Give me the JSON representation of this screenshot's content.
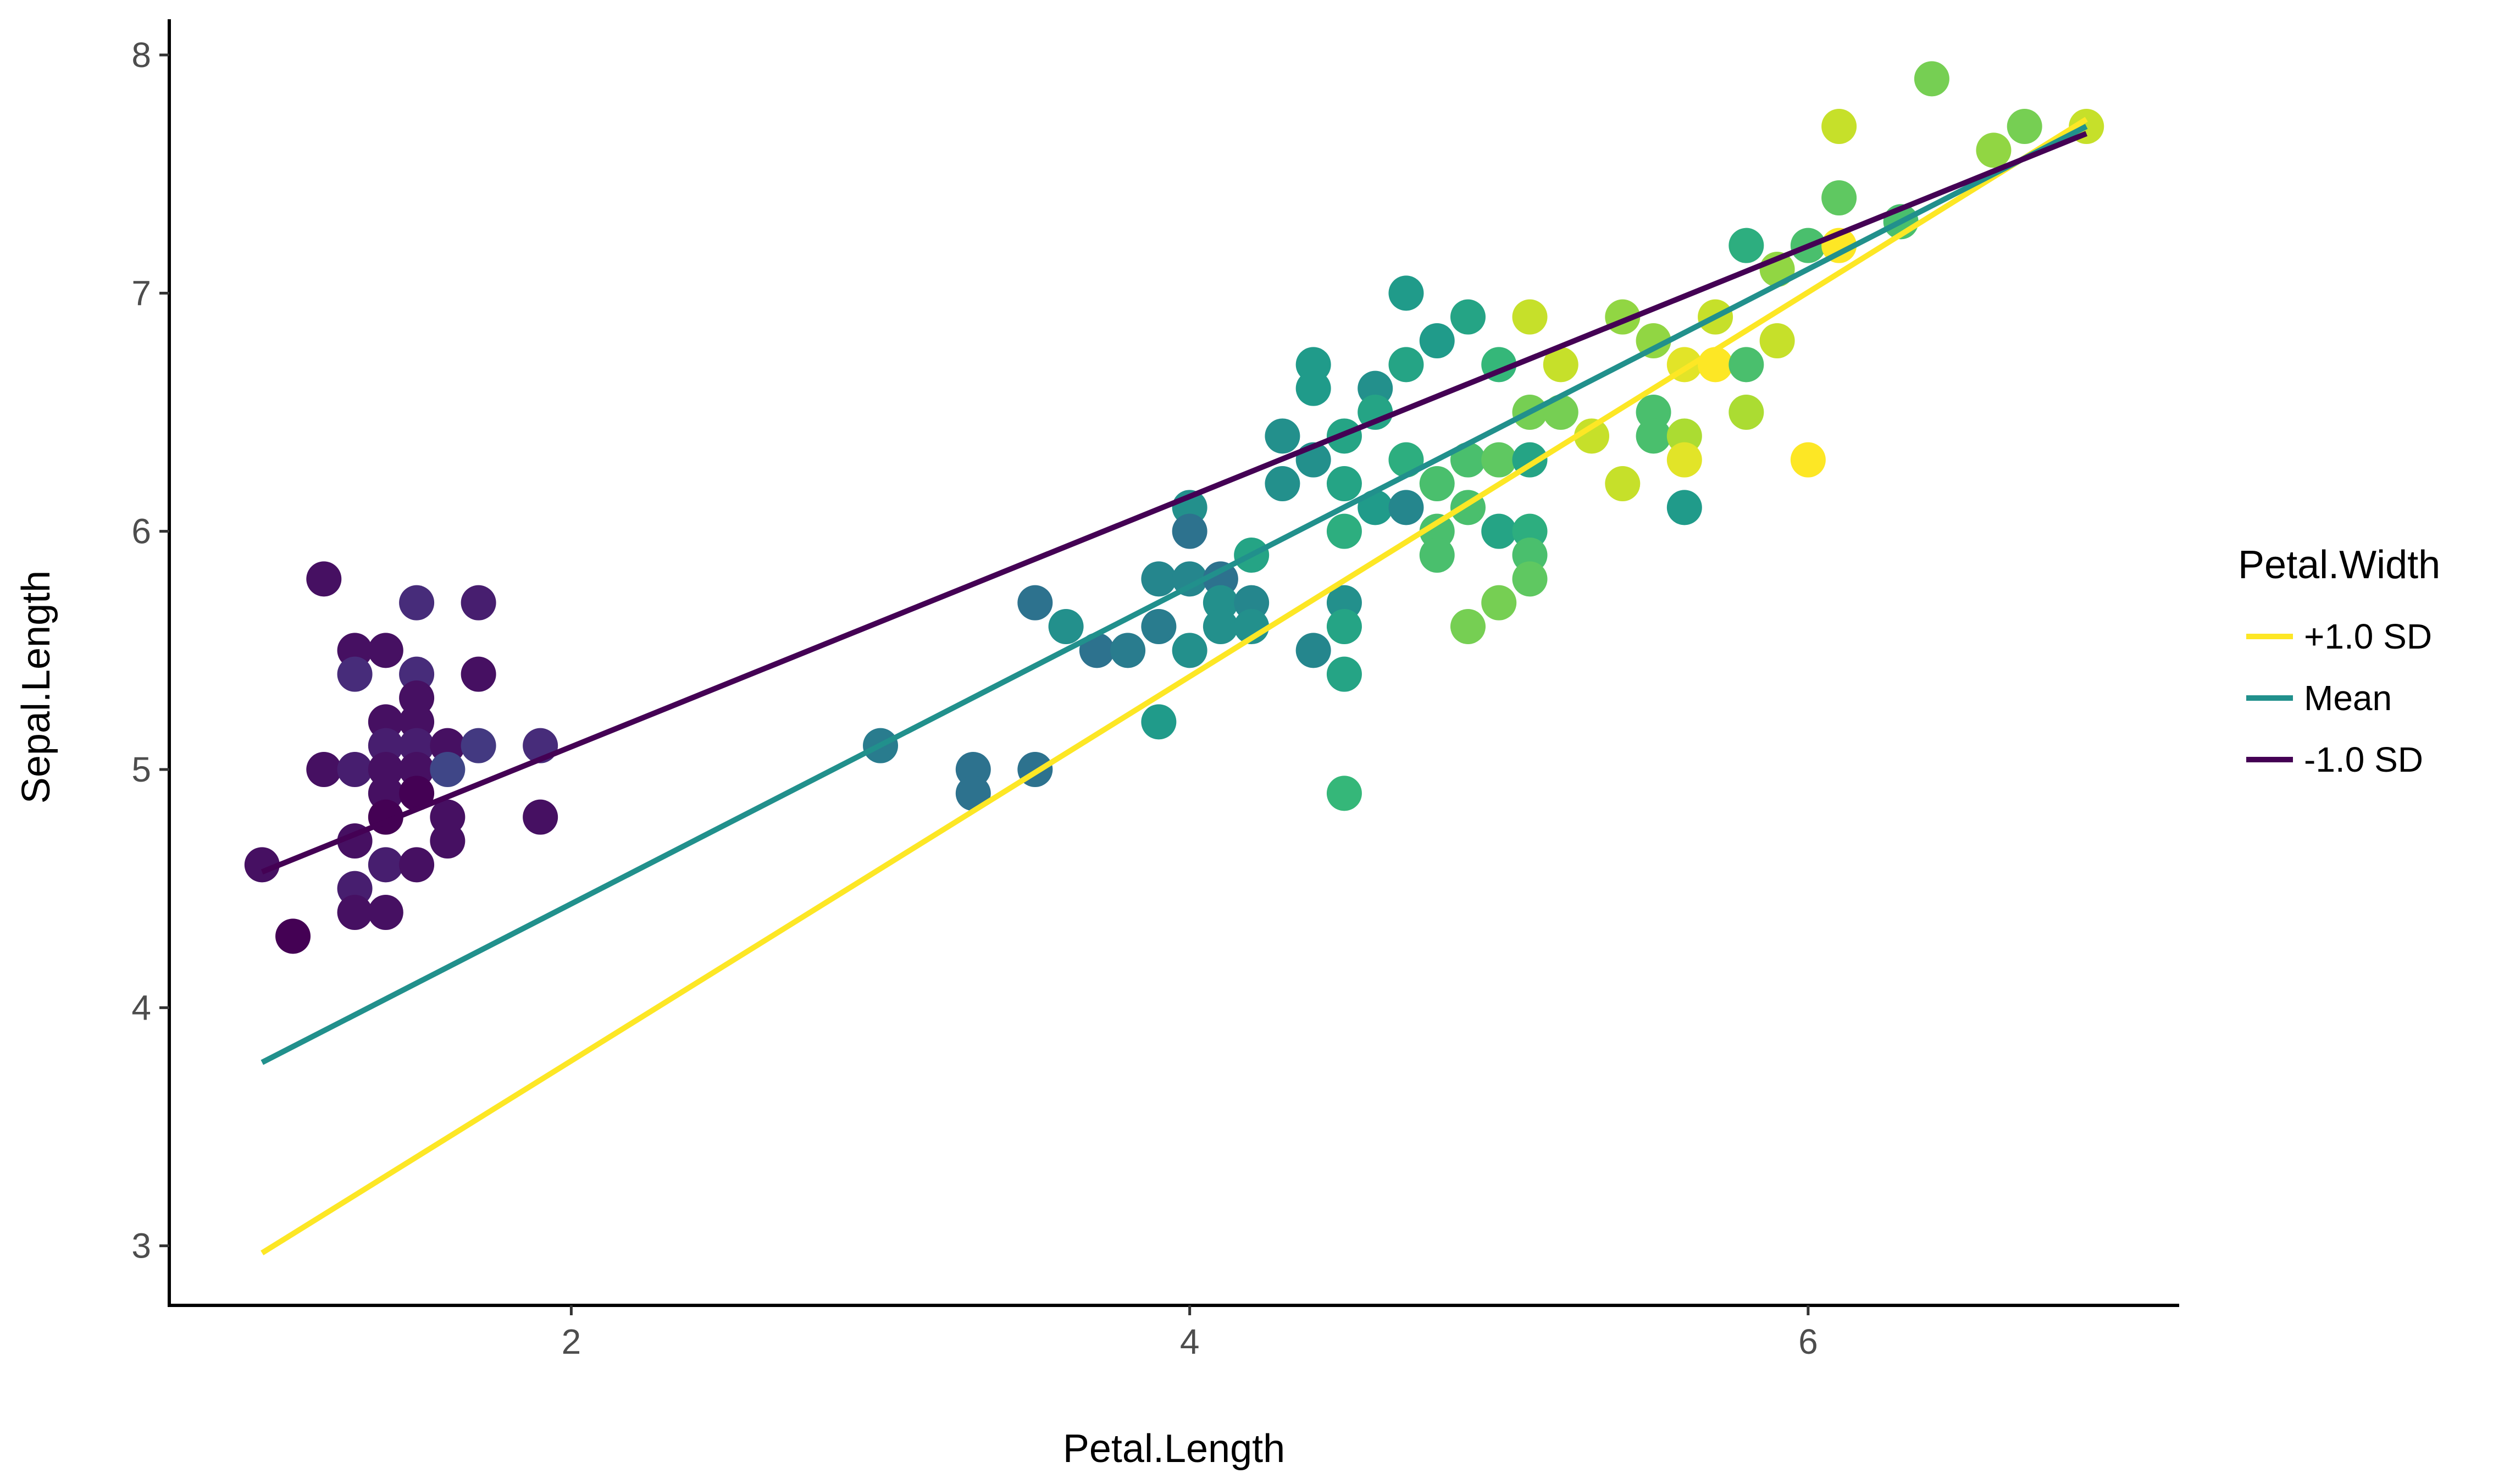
{
  "chart_data": {
    "type": "scatter",
    "xlabel": "Petal.Length",
    "ylabel": "Sepal.Length",
    "xlim": [
      0.7,
      7.2
    ],
    "ylim": [
      2.75,
      8.15
    ],
    "x_ticks": [
      2,
      4,
      6
    ],
    "y_ticks": [
      3,
      4,
      5,
      6,
      7,
      8
    ],
    "grid": false,
    "legend": {
      "title": "Petal.Width",
      "position": "right",
      "entries": [
        {
          "label": "+1.0 SD",
          "color": "#FDE725"
        },
        {
          "label": "Mean",
          "color": "#21908C"
        },
        {
          "label": "-1.0 SD",
          "color": "#440154"
        }
      ]
    },
    "color_scale": {
      "variable": "Petal.Width",
      "palette": "viridis",
      "stops": [
        "#440154",
        "#482878",
        "#3E4A89",
        "#31688E",
        "#26828E",
        "#1F9E89",
        "#35B779",
        "#6DCD59",
        "#B4DE2C",
        "#FDE725"
      ]
    },
    "series": [
      {
        "line": true,
        "x": [
          1.0,
          6.9
        ],
        "y": [
          2.97,
          7.73
        ],
        "color": "#FDE725"
      },
      {
        "line": true,
        "x": [
          1.0,
          6.9
        ],
        "y": [
          3.77,
          7.7
        ],
        "color": "#21908C"
      },
      {
        "line": true,
        "x": [
          1.0,
          6.9
        ],
        "y": [
          4.57,
          7.67
        ],
        "color": "#440154"
      }
    ],
    "points": [
      [
        1.0,
        4.6,
        0.2
      ],
      [
        1.1,
        4.3,
        0.1
      ],
      [
        1.2,
        5.8,
        0.2
      ],
      [
        1.2,
        5.0,
        0.2
      ],
      [
        1.3,
        5.5,
        0.2
      ],
      [
        1.3,
        5.4,
        0.4
      ],
      [
        1.3,
        5.0,
        0.3
      ],
      [
        1.3,
        4.7,
        0.2
      ],
      [
        1.3,
        4.5,
        0.3
      ],
      [
        1.3,
        4.4,
        0.2
      ],
      [
        1.4,
        5.5,
        0.2
      ],
      [
        1.4,
        5.2,
        0.2
      ],
      [
        1.4,
        5.1,
        0.3
      ],
      [
        1.4,
        5.0,
        0.2
      ],
      [
        1.4,
        4.9,
        0.2
      ],
      [
        1.4,
        4.8,
        0.1
      ],
      [
        1.4,
        4.6,
        0.3
      ],
      [
        1.4,
        4.4,
        0.2
      ],
      [
        1.5,
        5.7,
        0.4
      ],
      [
        1.5,
        5.4,
        0.4
      ],
      [
        1.5,
        5.3,
        0.2
      ],
      [
        1.5,
        5.2,
        0.2
      ],
      [
        1.5,
        5.1,
        0.3
      ],
      [
        1.5,
        5.0,
        0.2
      ],
      [
        1.5,
        4.9,
        0.1
      ],
      [
        1.5,
        4.6,
        0.2
      ],
      [
        1.6,
        5.1,
        0.2
      ],
      [
        1.6,
        5.0,
        0.6
      ],
      [
        1.6,
        4.8,
        0.2
      ],
      [
        1.6,
        4.7,
        0.2
      ],
      [
        1.7,
        5.7,
        0.3
      ],
      [
        1.7,
        5.4,
        0.2
      ],
      [
        1.7,
        5.1,
        0.5
      ],
      [
        1.9,
        5.1,
        0.4
      ],
      [
        1.9,
        4.8,
        0.2
      ],
      [
        3.0,
        5.1,
        1.1
      ],
      [
        3.3,
        5.0,
        1.0
      ],
      [
        3.3,
        4.9,
        1.0
      ],
      [
        3.5,
        5.7,
        1.0
      ],
      [
        3.5,
        5.0,
        1.0
      ],
      [
        3.6,
        5.6,
        1.3
      ],
      [
        3.7,
        5.5,
        1.0
      ],
      [
        3.8,
        5.5,
        1.1
      ],
      [
        3.9,
        5.8,
        1.2
      ],
      [
        3.9,
        5.6,
        1.1
      ],
      [
        3.9,
        5.2,
        1.4
      ],
      [
        4.0,
        6.1,
        1.3
      ],
      [
        4.0,
        6.0,
        1.0
      ],
      [
        4.0,
        5.8,
        1.2
      ],
      [
        4.0,
        5.5,
        1.3
      ],
      [
        4.1,
        5.8,
        1.0
      ],
      [
        4.1,
        5.7,
        1.3
      ],
      [
        4.1,
        5.6,
        1.3
      ],
      [
        4.2,
        5.9,
        1.5
      ],
      [
        4.2,
        5.7,
        1.2
      ],
      [
        4.2,
        5.6,
        1.3
      ],
      [
        4.3,
        6.4,
        1.3
      ],
      [
        4.3,
        6.2,
        1.3
      ],
      [
        4.4,
        6.7,
        1.4
      ],
      [
        4.4,
        6.6,
        1.4
      ],
      [
        4.4,
        6.3,
        1.3
      ],
      [
        4.4,
        5.5,
        1.2
      ],
      [
        4.5,
        6.4,
        1.5
      ],
      [
        4.5,
        6.2,
        1.5
      ],
      [
        4.5,
        6.0,
        1.6
      ],
      [
        4.5,
        5.7,
        1.3
      ],
      [
        4.5,
        5.6,
        1.5
      ],
      [
        4.5,
        5.4,
        1.5
      ],
      [
        4.5,
        4.9,
        1.7
      ],
      [
        4.6,
        6.6,
        1.3
      ],
      [
        4.6,
        6.5,
        1.5
      ],
      [
        4.6,
        6.1,
        1.4
      ],
      [
        4.7,
        7.0,
        1.4
      ],
      [
        4.7,
        6.7,
        1.5
      ],
      [
        4.7,
        6.3,
        1.6
      ],
      [
        4.7,
        6.1,
        1.2
      ],
      [
        4.8,
        6.8,
        1.4
      ],
      [
        4.8,
        6.2,
        1.8
      ],
      [
        4.8,
        6.0,
        1.8
      ],
      [
        4.8,
        5.9,
        1.8
      ],
      [
        4.9,
        6.9,
        1.5
      ],
      [
        4.9,
        6.3,
        1.8
      ],
      [
        4.9,
        6.1,
        1.8
      ],
      [
        4.9,
        5.6,
        2.0
      ],
      [
        5.0,
        6.7,
        1.7
      ],
      [
        5.0,
        6.3,
        1.9
      ],
      [
        5.0,
        6.0,
        1.5
      ],
      [
        5.0,
        5.7,
        2.0
      ],
      [
        5.1,
        6.9,
        2.3
      ],
      [
        5.1,
        6.5,
        2.0
      ],
      [
        5.1,
        6.3,
        1.5
      ],
      [
        5.1,
        6.0,
        1.6
      ],
      [
        5.1,
        5.9,
        1.8
      ],
      [
        5.1,
        5.8,
        1.9
      ],
      [
        5.2,
        6.7,
        2.3
      ],
      [
        5.2,
        6.5,
        2.0
      ],
      [
        5.3,
        6.4,
        2.3
      ],
      [
        5.4,
        6.9,
        2.1
      ],
      [
        5.4,
        6.2,
        2.3
      ],
      [
        5.5,
        6.8,
        2.1
      ],
      [
        5.5,
        6.5,
        1.8
      ],
      [
        5.5,
        6.4,
        1.8
      ],
      [
        5.6,
        6.7,
        2.4
      ],
      [
        5.6,
        6.4,
        2.2
      ],
      [
        5.6,
        6.3,
        2.4
      ],
      [
        5.6,
        6.1,
        1.4
      ],
      [
        5.7,
        6.9,
        2.3
      ],
      [
        5.7,
        6.7,
        2.5
      ],
      [
        5.8,
        7.2,
        1.6
      ],
      [
        5.8,
        6.7,
        1.8
      ],
      [
        5.8,
        6.5,
        2.2
      ],
      [
        5.9,
        7.1,
        2.1
      ],
      [
        5.9,
        6.8,
        2.3
      ],
      [
        6.0,
        7.2,
        1.8
      ],
      [
        6.0,
        6.3,
        2.5
      ],
      [
        6.1,
        7.7,
        2.3
      ],
      [
        6.1,
        7.4,
        1.9
      ],
      [
        6.1,
        7.2,
        2.5
      ],
      [
        6.3,
        7.3,
        1.8
      ],
      [
        6.4,
        7.9,
        2.0
      ],
      [
        6.6,
        7.6,
        2.1
      ],
      [
        6.7,
        7.7,
        2.0
      ],
      [
        6.9,
        7.7,
        2.3
      ]
    ]
  }
}
